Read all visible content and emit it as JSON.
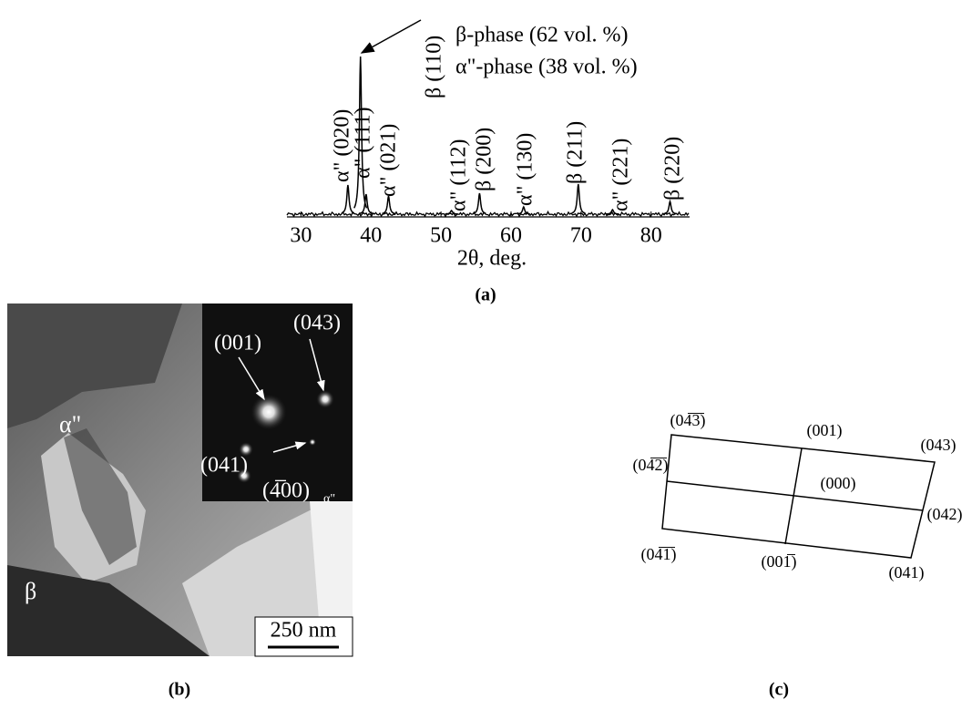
{
  "chart_data": {
    "type": "xrd",
    "x_label": "2θ, deg.",
    "xlim": [
      28,
      85.5
    ],
    "xticks": [
      30,
      40,
      50,
      60,
      70,
      80
    ],
    "legend": [
      "β-phase (62 vol. %)",
      "α\"-phase (38 vol. %)"
    ],
    "x": [
      36.7,
      38.5,
      39.3,
      42.5,
      51.5,
      55.5,
      61.8,
      69.6,
      74.5,
      82.7
    ],
    "values": [
      32,
      173,
      22,
      20,
      4,
      23,
      8,
      33,
      5,
      14
    ],
    "peak_labels": [
      "α\" (020)",
      "β (110)",
      "α\" (111)",
      "α\" (021)",
      "α\" (112)",
      "β (200)",
      "α\" (130)",
      "β (211)",
      "α\" (221)",
      "β (220)"
    ]
  },
  "caption_a": "(a)",
  "panel_b": {
    "caption": "(b)",
    "phase_alpha": "α\"",
    "phase_beta": "β",
    "scale_bar": "250 nm",
    "spots": [
      "(001)",
      "(043)",
      "(041)",
      "(4̅00)"
    ],
    "spot_subscript": "α\""
  },
  "panel_c": {
    "caption": "(c)",
    "labels": [
      "(04̅3̅)",
      "(001)",
      "(043)",
      "(04̅2̅)",
      "(000)",
      "(042)",
      "(04̅1̅)",
      "(001̅)",
      "(041)"
    ]
  }
}
